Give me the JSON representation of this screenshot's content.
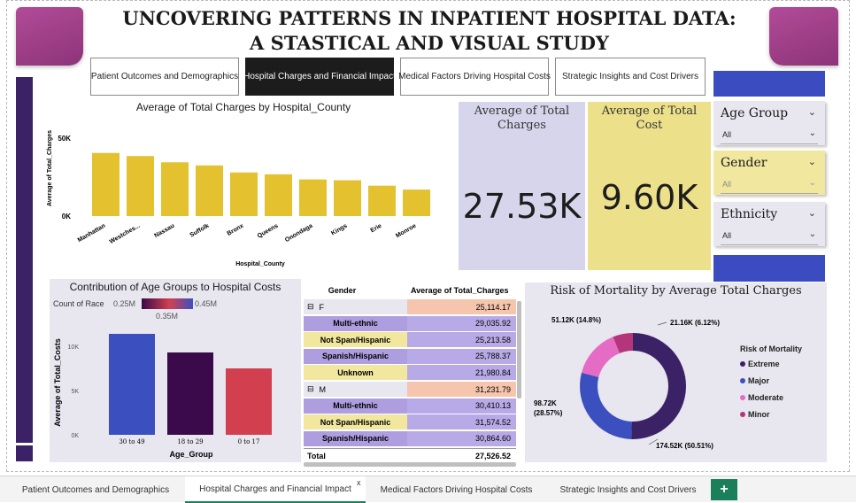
{
  "title_line1": "UNCOVERING PATTERNS IN INPATIENT HOSPITAL DATA:",
  "title_line2": "A STASTICAL AND VISUAL STUDY",
  "nav": [
    {
      "label": "Patient Outcomes and Demographics",
      "active": false
    },
    {
      "label": "Hospital Charges and Financial Impact",
      "active": true
    },
    {
      "label": "Medical Factors Driving Hospital Costs",
      "active": false
    },
    {
      "label": "Strategic Insights and Cost Drivers",
      "active": false
    }
  ],
  "kpis": {
    "charges_title": "Average of Total Charges",
    "charges_value": "27.53K",
    "cost_title": "Average of Total Cost",
    "cost_value": "9.60K"
  },
  "slicers": [
    {
      "title": "Age Group",
      "value": "All"
    },
    {
      "title": "Gender",
      "value": "All"
    },
    {
      "title": "Ethnicity",
      "value": "All"
    }
  ],
  "colors": {
    "bar_yellow": "#e3c12f",
    "kpi_lavender": "#d6d5eb",
    "kpi_yellow": "#ede08a",
    "purple_dark": "#3b2266",
    "slicer_yellow": "#f1e79f",
    "accent_green": "#1a7f5a"
  },
  "table": {
    "col1": "Gender",
    "col2": "Average of Total_Charges",
    "rows": [
      {
        "label": "F",
        "value": "25,114.17",
        "type": "group"
      },
      {
        "label": "Multi-ethnic",
        "value": "29,035.92",
        "type": "a"
      },
      {
        "label": "Not Span/Hispanic",
        "value": "25,213.58",
        "type": "b"
      },
      {
        "label": "Spanish/Hispanic",
        "value": "25,788.37",
        "type": "a"
      },
      {
        "label": "Unknown",
        "value": "21,980.84",
        "type": "b"
      },
      {
        "label": "M",
        "value": "31,231.79",
        "type": "group"
      },
      {
        "label": "Multi-ethnic",
        "value": "30,410.13",
        "type": "a"
      },
      {
        "label": "Not Span/Hispanic",
        "value": "31,574.52",
        "type": "b"
      },
      {
        "label": "Spanish/Hispanic",
        "value": "30,864.60",
        "type": "a"
      }
    ],
    "total_label": "Total",
    "total_value": "27,526.52",
    "expand_symbol": "⊟"
  },
  "tabs": [
    {
      "label": "Patient Outcomes and Demographics",
      "active": false
    },
    {
      "label": "Hospital Charges and Financial Impact",
      "active": true
    },
    {
      "label": "Medical Factors Driving Hospital Costs",
      "active": false
    },
    {
      "label": "Strategic Insights and Cost Drivers",
      "active": false
    }
  ],
  "chart_data": [
    {
      "type": "bar",
      "title": "Average of Total Charges by Hospital_County",
      "xlabel": "Hospital_County",
      "ylabel": "Average of Total_Charges",
      "categories": [
        "Manhattan",
        "Westches...",
        "Nassau",
        "Suffolk",
        "Bronx",
        "Queens",
        "Onondaga",
        "Kings",
        "Erie",
        "Monroe"
      ],
      "values": [
        40500,
        38500,
        34500,
        32500,
        28000,
        26800,
        23500,
        23000,
        19500,
        17000
      ],
      "yticks": [
        "0K",
        "50K"
      ],
      "ylim": [
        0,
        50000
      ],
      "grid": false
    },
    {
      "type": "bar",
      "title": "Contribution of Age Groups to Hospital Costs",
      "xlabel": "Age_Group",
      "ylabel": "Average of Total_Costs",
      "categories": [
        "30 to 49",
        "18 to 29",
        "0 to 17"
      ],
      "values": [
        11400,
        9300,
        7500
      ],
      "colors": [
        "#3c4fbf",
        "#3a0a4a",
        "#d24050"
      ],
      "yticks": [
        "0K",
        "5K",
        "10K"
      ],
      "ylim": [
        0,
        12500
      ],
      "color_legend": {
        "title": "Count of Race",
        "min": "0.25M",
        "mid": "0.35M",
        "max": "0.45M"
      }
    },
    {
      "type": "pie",
      "title": "Risk of Mortality by Average Total Charges",
      "legend_title": "Risk of Mortality",
      "slices": [
        {
          "name": "Extreme",
          "value": 174.52,
          "label": "174.52K (50.51%)",
          "color": "#3b2266"
        },
        {
          "name": "Major",
          "value": 98.72,
          "label": "98.72K\n(28.57%)",
          "color": "#3c4fbf"
        },
        {
          "name": "Moderate",
          "value": 51.12,
          "label": "51.12K (14.8%)",
          "color": "#e46cc4"
        },
        {
          "name": "Minor",
          "value": 21.16,
          "label": "21.16K (6.12%)",
          "color": "#b3357a"
        }
      ]
    }
  ]
}
